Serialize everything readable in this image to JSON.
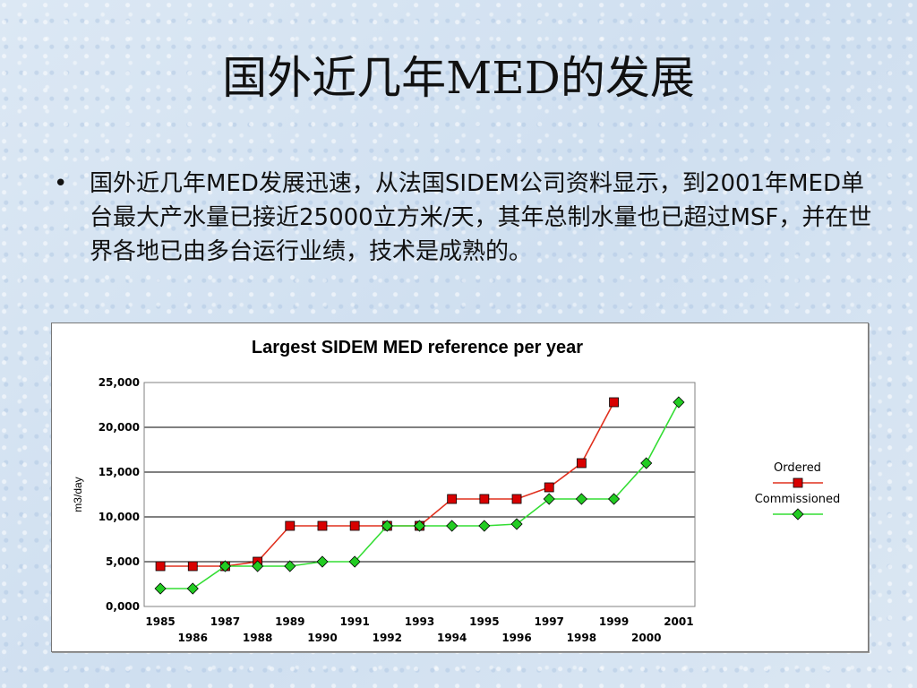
{
  "slide": {
    "title": "国外近几年MED的发展",
    "bullet_symbol": "•",
    "bullet_text": "国外近几年MED发展迅速，从法国SIDEM公司资料显示，到2001年MED单台最大产水量已接近25000立方米/天，其年总制水量也已超过MSF，并在世界各地已由多台运行业绩，技术是成熟的。"
  },
  "colors": {
    "ordered_line": "#e0301e",
    "ordered_marker": "#d80000",
    "commissioned_line": "#33dd33",
    "commissioned_marker": "#22cc22",
    "gridline": "#000000"
  },
  "chart_data": {
    "type": "line",
    "title": "Largest SIDEM MED reference per year",
    "ylabel": "m3/day",
    "xlabel": "",
    "ylim": [
      0,
      25000
    ],
    "yticks": [
      0,
      5000,
      10000,
      15000,
      20000,
      25000
    ],
    "ytick_labels": [
      "0,000",
      "5,000",
      "10,000",
      "15,000",
      "20,000",
      "25,000"
    ],
    "xticks": [
      1985,
      1986,
      1987,
      1988,
      1989,
      1990,
      1991,
      1992,
      1993,
      1994,
      1995,
      1996,
      1997,
      1998,
      1999,
      2000,
      2001
    ],
    "grid": "horizontal",
    "legend_position": "right",
    "series": [
      {
        "name": "Ordered",
        "marker": "square",
        "points": [
          [
            1985,
            4500
          ],
          [
            1986,
            4500
          ],
          [
            1987,
            4500
          ],
          [
            1988,
            5000
          ],
          [
            1989,
            9000
          ],
          [
            1990,
            9000
          ],
          [
            1991,
            9000
          ],
          [
            1992,
            9000
          ],
          [
            1993,
            9000
          ],
          [
            1994,
            12000
          ],
          [
            1995,
            12000
          ],
          [
            1996,
            12000
          ],
          [
            1997,
            13300
          ],
          [
            1998,
            16000
          ],
          [
            1999,
            22800
          ]
        ]
      },
      {
        "name": "Commissioned",
        "marker": "diamond",
        "points": [
          [
            1985,
            2000
          ],
          [
            1986,
            2000
          ],
          [
            1987,
            4500
          ],
          [
            1988,
            4500
          ],
          [
            1989,
            4500
          ],
          [
            1990,
            5000
          ],
          [
            1991,
            5000
          ],
          [
            1992,
            9000
          ],
          [
            1993,
            9000
          ],
          [
            1994,
            9000
          ],
          [
            1995,
            9000
          ],
          [
            1996,
            9200
          ],
          [
            1997,
            12000
          ],
          [
            1998,
            12000
          ],
          [
            1999,
            12000
          ],
          [
            2000,
            16000
          ],
          [
            2001,
            22800
          ]
        ]
      }
    ]
  }
}
